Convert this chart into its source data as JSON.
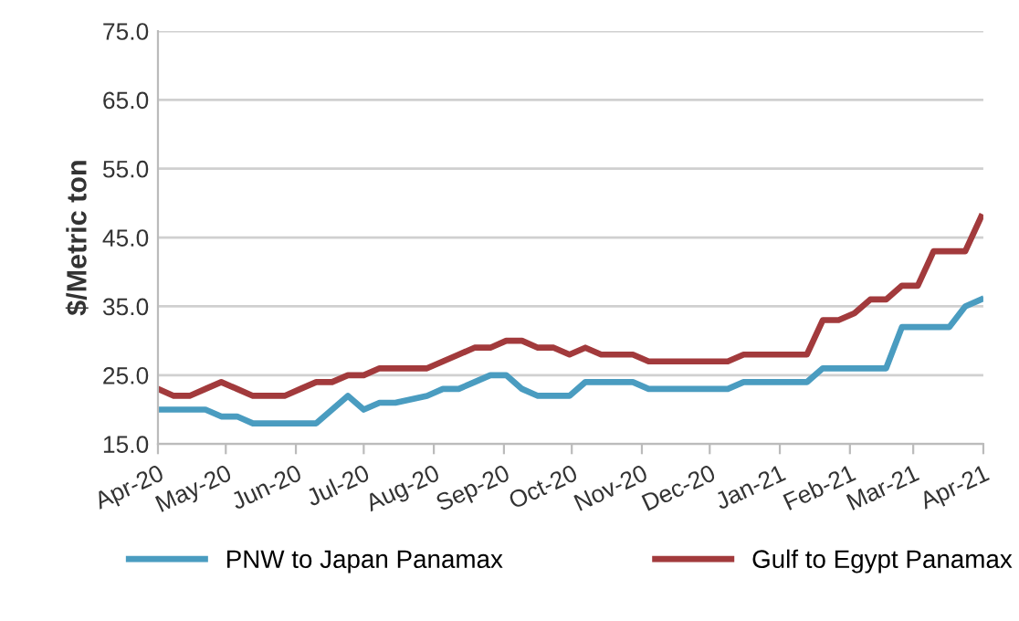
{
  "chart_data": {
    "type": "line",
    "ylabel": "$/Metric ton",
    "x": [
      "2020-04-01",
      "2020-04-08",
      "2020-04-15",
      "2020-04-22",
      "2020-04-29",
      "2020-05-06",
      "2020-05-13",
      "2020-05-20",
      "2020-05-27",
      "2020-06-03",
      "2020-06-10",
      "2020-06-17",
      "2020-06-24",
      "2020-07-01",
      "2020-07-08",
      "2020-07-15",
      "2020-07-22",
      "2020-07-29",
      "2020-08-05",
      "2020-08-12",
      "2020-08-19",
      "2020-08-26",
      "2020-09-02",
      "2020-09-09",
      "2020-09-16",
      "2020-09-23",
      "2020-09-30",
      "2020-10-07",
      "2020-10-14",
      "2020-10-21",
      "2020-10-28",
      "2020-11-04",
      "2020-11-11",
      "2020-11-18",
      "2020-11-25",
      "2020-12-02",
      "2020-12-09",
      "2020-12-16",
      "2020-12-23",
      "2020-12-30",
      "2021-01-06",
      "2021-01-13",
      "2021-01-20",
      "2021-01-27",
      "2021-02-03",
      "2021-02-10",
      "2021-02-17",
      "2021-02-24",
      "2021-03-03",
      "2021-03-10",
      "2021-03-17",
      "2021-03-24",
      "2021-03-31"
    ],
    "series": [
      {
        "name": "PNW to Japan Panamax",
        "color": "#4a9cc0",
        "values": [
          20,
          20,
          20,
          20,
          19,
          19,
          18,
          18,
          18,
          18,
          18,
          20,
          22,
          20,
          21,
          21,
          21.5,
          22,
          23,
          23,
          24,
          25,
          25,
          23,
          22,
          22,
          22,
          24,
          24,
          24,
          24,
          23,
          23,
          23,
          23,
          23,
          23,
          24,
          24,
          24,
          24,
          24,
          26,
          26,
          26,
          26,
          26,
          32,
          32,
          32,
          32,
          35,
          36
        ]
      },
      {
        "name": "Gulf to Egypt Panamax",
        "color": "#a23a3c",
        "values": [
          23,
          22,
          22,
          23,
          24,
          23,
          22,
          22,
          22,
          23,
          24,
          24,
          25,
          25,
          26,
          26,
          26,
          26,
          27,
          28,
          29,
          29,
          30,
          30,
          29,
          29,
          28,
          29,
          28,
          28,
          28,
          27,
          27,
          27,
          27,
          27,
          27,
          28,
          28,
          28,
          28,
          28,
          33,
          33,
          34,
          36,
          36,
          38,
          38,
          43,
          43,
          43,
          48
        ]
      }
    ],
    "xlim": [
      "2020-04-01",
      "2021-04-01"
    ],
    "xticks": [
      {
        "value": "2020-04-01",
        "label": "Apr-20"
      },
      {
        "value": "2020-05-01",
        "label": "May-20"
      },
      {
        "value": "2020-06-01",
        "label": "Jun-20"
      },
      {
        "value": "2020-07-01",
        "label": "Jul-20"
      },
      {
        "value": "2020-08-01",
        "label": "Aug-20"
      },
      {
        "value": "2020-09-01",
        "label": "Sep-20"
      },
      {
        "value": "2020-10-01",
        "label": "Oct-20"
      },
      {
        "value": "2020-11-01",
        "label": "Nov-20"
      },
      {
        "value": "2020-12-01",
        "label": "Dec-20"
      },
      {
        "value": "2021-01-01",
        "label": "Jan-21"
      },
      {
        "value": "2021-02-01",
        "label": "Feb-21"
      },
      {
        "value": "2021-03-01",
        "label": "Mar-21"
      },
      {
        "value": "2021-04-01",
        "label": "Apr-21"
      }
    ],
    "ylim": [
      15,
      75
    ],
    "yticks": [
      {
        "value": 15,
        "label": "15.0"
      },
      {
        "value": 25,
        "label": "25.0"
      },
      {
        "value": 35,
        "label": "35.0"
      },
      {
        "value": 45,
        "label": "45.0"
      },
      {
        "value": 55,
        "label": "55.0"
      },
      {
        "value": 65,
        "label": "65.0"
      },
      {
        "value": 75,
        "label": "75.0"
      }
    ],
    "grid": "y",
    "legend": "bottom",
    "marker": "none",
    "line_style": "solid"
  }
}
